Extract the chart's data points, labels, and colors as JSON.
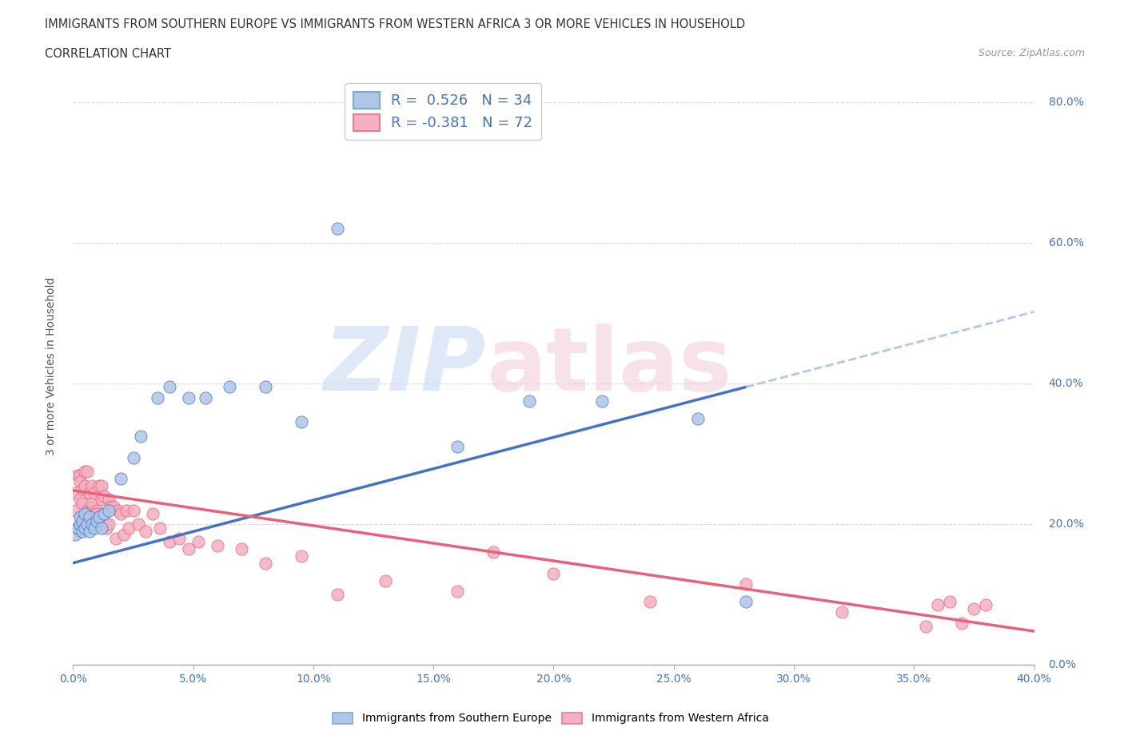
{
  "title_line1": "IMMIGRANTS FROM SOUTHERN EUROPE VS IMMIGRANTS FROM WESTERN AFRICA 3 OR MORE VEHICLES IN HOUSEHOLD",
  "title_line2": "CORRELATION CHART",
  "source": "Source: ZipAtlas.com",
  "ylabel_label": "3 or more Vehicles in Household",
  "legend1_label": "R =  0.526   N = 34",
  "legend2_label": "R = -0.381   N = 72",
  "legend1_color": "#aec6e8",
  "legend2_color": "#f4afc0",
  "blue_dot_color": "#aec6e8",
  "pink_dot_color": "#f4afc0",
  "blue_line_color": "#4472c4",
  "pink_line_color": "#e8607a",
  "dashed_line_color": "#b0c8e8",
  "xlim": [
    0.0,
    0.4
  ],
  "ylim": [
    0.0,
    0.85
  ],
  "xticks": [
    0.0,
    0.05,
    0.1,
    0.15,
    0.2,
    0.25,
    0.3,
    0.35,
    0.4
  ],
  "yticks": [
    0.0,
    0.2,
    0.4,
    0.6,
    0.8
  ],
  "blue_line_x0": 0.0,
  "blue_line_y0": 0.145,
  "blue_line_x1": 0.28,
  "blue_line_y1": 0.395,
  "dashed_line_x0": 0.28,
  "dashed_line_y0": 0.395,
  "dashed_line_x1": 0.4,
  "dashed_line_y1": 0.502,
  "pink_line_x0": 0.0,
  "pink_line_y0": 0.248,
  "pink_line_x1": 0.4,
  "pink_line_y1": 0.048,
  "blue_scatter_x": [
    0.001,
    0.002,
    0.003,
    0.003,
    0.004,
    0.004,
    0.005,
    0.005,
    0.006,
    0.007,
    0.007,
    0.008,
    0.009,
    0.01,
    0.011,
    0.012,
    0.013,
    0.015,
    0.02,
    0.025,
    0.028,
    0.035,
    0.04,
    0.048,
    0.055,
    0.065,
    0.08,
    0.095,
    0.11,
    0.16,
    0.19,
    0.22,
    0.26,
    0.28
  ],
  "blue_scatter_y": [
    0.185,
    0.195,
    0.2,
    0.21,
    0.19,
    0.205,
    0.195,
    0.215,
    0.2,
    0.19,
    0.21,
    0.2,
    0.195,
    0.205,
    0.21,
    0.195,
    0.215,
    0.22,
    0.265,
    0.295,
    0.325,
    0.38,
    0.395,
    0.38,
    0.38,
    0.395,
    0.395,
    0.345,
    0.62,
    0.31,
    0.375,
    0.375,
    0.35,
    0.09
  ],
  "pink_scatter_x": [
    0.001,
    0.001,
    0.002,
    0.002,
    0.003,
    0.003,
    0.003,
    0.003,
    0.004,
    0.004,
    0.004,
    0.005,
    0.005,
    0.005,
    0.006,
    0.006,
    0.006,
    0.007,
    0.007,
    0.007,
    0.008,
    0.008,
    0.008,
    0.009,
    0.009,
    0.01,
    0.01,
    0.011,
    0.011,
    0.012,
    0.012,
    0.013,
    0.013,
    0.014,
    0.014,
    0.015,
    0.015,
    0.016,
    0.017,
    0.018,
    0.019,
    0.02,
    0.021,
    0.022,
    0.023,
    0.025,
    0.027,
    0.03,
    0.033,
    0.036,
    0.04,
    0.044,
    0.048,
    0.052,
    0.06,
    0.07,
    0.08,
    0.095,
    0.11,
    0.13,
    0.16,
    0.2,
    0.24,
    0.28,
    0.32,
    0.36,
    0.365,
    0.37,
    0.375,
    0.38,
    0.175,
    0.355
  ],
  "pink_scatter_y": [
    0.245,
    0.22,
    0.27,
    0.195,
    0.27,
    0.26,
    0.235,
    0.19,
    0.23,
    0.25,
    0.21,
    0.275,
    0.255,
    0.195,
    0.275,
    0.22,
    0.215,
    0.245,
    0.215,
    0.2,
    0.225,
    0.255,
    0.23,
    0.205,
    0.245,
    0.22,
    0.215,
    0.205,
    0.255,
    0.255,
    0.235,
    0.24,
    0.215,
    0.195,
    0.2,
    0.235,
    0.2,
    0.225,
    0.225,
    0.18,
    0.22,
    0.215,
    0.185,
    0.22,
    0.195,
    0.22,
    0.2,
    0.19,
    0.215,
    0.195,
    0.175,
    0.18,
    0.165,
    0.175,
    0.17,
    0.165,
    0.145,
    0.155,
    0.1,
    0.12,
    0.105,
    0.13,
    0.09,
    0.115,
    0.075,
    0.085,
    0.09,
    0.06,
    0.08,
    0.085,
    0.16,
    0.055
  ],
  "grid_color": "#d8d8d8",
  "bg_color": "#ffffff"
}
